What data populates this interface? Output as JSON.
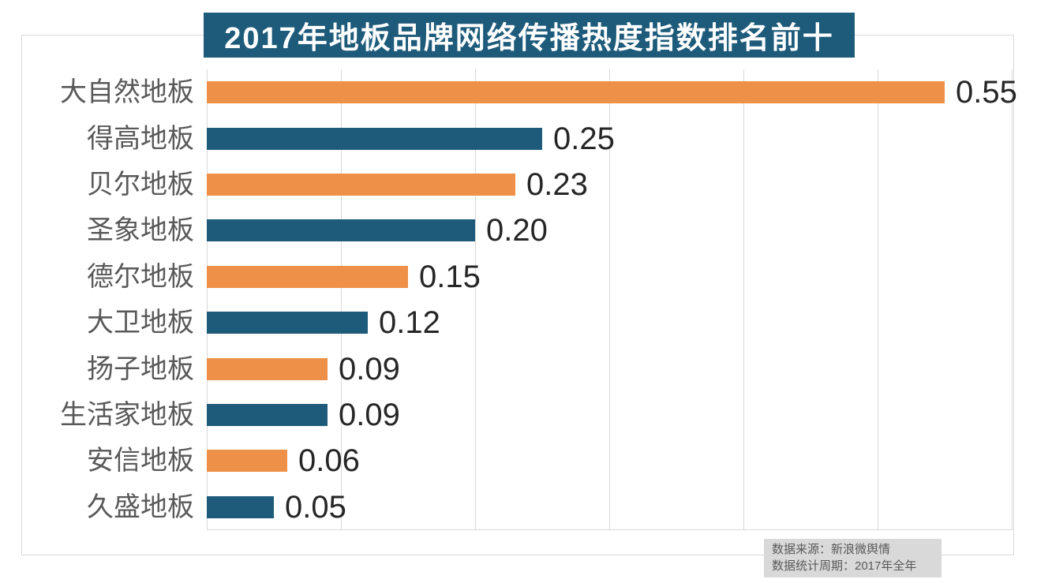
{
  "title": "2017年地板品牌网络传播热度指数排名前十",
  "source_note": {
    "line1": "数据来源：新浪微舆情",
    "line2": "数据统计周期：2017年全年"
  },
  "colors": {
    "banner_bg": "#1e5b7b",
    "bar_orange": "#ee9047",
    "bar_teal": "#1e5b7b",
    "gridline": "#d9d9d9",
    "category_label": "#595959",
    "value_label": "#262626",
    "source_box_bg": "#d9d9d9"
  },
  "chart_data": {
    "type": "bar",
    "orientation": "horizontal",
    "title": "2017年地板品牌网络传播热度指数排名前十",
    "categories": [
      "大自然地板",
      "得高地板",
      "贝尔地板",
      "圣象地板",
      "德尔地板",
      "大卫地板",
      "扬子地板",
      "生活家地板",
      "安信地板",
      "久盛地板"
    ],
    "values": [
      0.55,
      0.25,
      0.23,
      0.2,
      0.15,
      0.12,
      0.09,
      0.09,
      0.06,
      0.05
    ],
    "value_labels": [
      "0.55",
      "0.25",
      "0.23",
      "0.20",
      "0.15",
      "0.12",
      "0.09",
      "0.09",
      "0.06",
      "0.05"
    ],
    "bar_colors_alternate": [
      "#ee9047",
      "#1e5b7b"
    ],
    "xlabel": "",
    "ylabel": "",
    "xlim": [
      0,
      0.6
    ],
    "grid_interval": 0.1,
    "grid": true,
    "legend_position": "none"
  }
}
